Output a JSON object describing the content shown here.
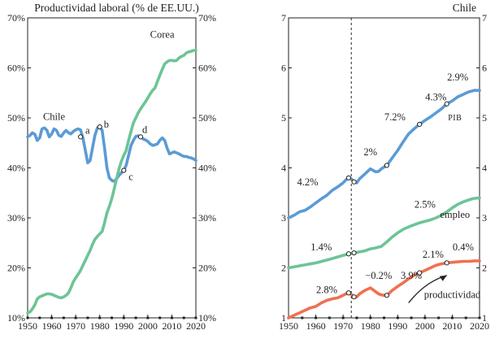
{
  "chart_data": [
    {
      "type": "line",
      "title": "Productividad laboral (% de EE.UU.)",
      "xlim": [
        1950,
        2020
      ],
      "ylim": [
        10,
        70
      ],
      "x_ticks": [
        1950,
        1960,
        1970,
        1980,
        1990,
        2000,
        2010,
        2020
      ],
      "x_tick_labels": [
        "1950",
        "1960",
        "1970",
        "1980",
        "1990",
        "2000",
        "2010",
        "2020"
      ],
      "y_ticks": [
        10,
        20,
        30,
        40,
        50,
        60,
        70
      ],
      "y_tick_labels": [
        "10%",
        "20%",
        "30%",
        "40%",
        "50%",
        "60%",
        "70%"
      ],
      "series": [
        {
          "name": "Chile",
          "label": "Chile",
          "color": "#5b9bd5",
          "x": [
            1950,
            1951,
            1952,
            1953,
            1954,
            1955,
            1956,
            1957,
            1958,
            1959,
            1960,
            1961,
            1962,
            1963,
            1964,
            1965,
            1966,
            1967,
            1968,
            1969,
            1970,
            1971,
            1972,
            1973,
            1974,
            1975,
            1976,
            1977,
            1978,
            1979,
            1980,
            1981,
            1982,
            1983,
            1984,
            1985,
            1986,
            1987,
            1988,
            1989,
            1990,
            1991,
            1992,
            1993,
            1994,
            1995,
            1996,
            1997,
            1998,
            1999,
            2000,
            2001,
            2002,
            2003,
            2004,
            2005,
            2006,
            2007,
            2008,
            2009,
            2010,
            2011,
            2012,
            2013,
            2014,
            2015,
            2016,
            2017,
            2018,
            2019,
            2020
          ],
          "values": [
            46.2,
            46.5,
            47.0,
            46.7,
            45.5,
            46.0,
            47.8,
            48.0,
            47.5,
            46.2,
            46.8,
            47.8,
            47.5,
            46.5,
            46.3,
            47.0,
            47.5,
            47.0,
            46.8,
            47.3,
            47.6,
            47.8,
            47.6,
            46.0,
            43.5,
            41.0,
            41.5,
            44.0,
            46.5,
            48.0,
            48.2,
            47.5,
            44.0,
            40.0,
            38.0,
            37.5,
            37.3,
            37.8,
            38.5,
            39.0,
            39.5,
            40.5,
            42.5,
            44.5,
            45.5,
            46.3,
            46.4,
            46.2,
            45.8,
            45.6,
            45.3,
            44.8,
            44.5,
            44.6,
            44.8,
            45.5,
            46.0,
            45.5,
            44.0,
            42.8,
            43.0,
            43.2,
            43.0,
            42.8,
            42.5,
            42.3,
            42.3,
            42.1,
            42.0,
            41.8,
            41.5
          ]
        },
        {
          "name": "Corea",
          "label": "Corea",
          "color": "#6dc496",
          "x": [
            1950,
            1951,
            1952,
            1953,
            1954,
            1955,
            1956,
            1957,
            1958,
            1959,
            1960,
            1961,
            1962,
            1963,
            1964,
            1965,
            1966,
            1967,
            1968,
            1969,
            1970,
            1971,
            1972,
            1973,
            1974,
            1975,
            1976,
            1977,
            1978,
            1979,
            1980,
            1981,
            1982,
            1983,
            1984,
            1985,
            1986,
            1987,
            1988,
            1989,
            1990,
            1991,
            1992,
            1993,
            1994,
            1995,
            1996,
            1997,
            1998,
            1999,
            2000,
            2001,
            2002,
            2003,
            2004,
            2005,
            2006,
            2007,
            2008,
            2009,
            2010,
            2011,
            2012,
            2013,
            2014,
            2015,
            2016,
            2017,
            2018,
            2019,
            2020
          ],
          "values": [
            11.0,
            11.2,
            11.8,
            12.6,
            13.8,
            14.2,
            14.4,
            14.6,
            14.8,
            14.8,
            14.7,
            14.5,
            14.3,
            14.1,
            14.0,
            14.2,
            14.5,
            15.0,
            16.0,
            17.2,
            18.0,
            18.7,
            19.5,
            20.5,
            21.5,
            22.5,
            23.5,
            24.7,
            25.7,
            26.3,
            26.8,
            27.3,
            29.0,
            31.0,
            32.3,
            33.8,
            35.8,
            37.8,
            39.8,
            41.3,
            42.5,
            43.5,
            45.5,
            47.3,
            49.0,
            50.0,
            51.0,
            51.8,
            52.5,
            53.2,
            54.0,
            54.8,
            55.5,
            56.0,
            57.3,
            58.5,
            59.7,
            60.8,
            61.2,
            61.5,
            61.5,
            61.4,
            61.5,
            62.0,
            62.3,
            62.5,
            63.0,
            63.2,
            63.3,
            63.5,
            63.5
          ]
        }
      ],
      "annotations": [
        {
          "label": "a",
          "x": 1972,
          "y": 46.2
        },
        {
          "label": "b",
          "x": 1980,
          "y": 48.2
        },
        {
          "label": "c",
          "x": 1990,
          "y": 39.5
        },
        {
          "label": "d",
          "x": 1997,
          "y": 46.2
        }
      ]
    },
    {
      "type": "line",
      "title": "Chile",
      "xlim": [
        1950,
        2020
      ],
      "ylim": [
        1,
        7
      ],
      "x_ticks": [
        1950,
        1960,
        1970,
        1980,
        1990,
        2000,
        2010,
        2020
      ],
      "x_tick_labels": [
        "1950",
        "1960",
        "1970",
        "1980",
        "1990",
        "2000",
        "2010",
        "2020"
      ],
      "y_ticks": [
        1,
        2,
        3,
        4,
        5,
        6,
        7
      ],
      "y_tick_labels": [
        "1",
        "2",
        "3",
        "4",
        "5",
        "6",
        "7"
      ],
      "vline_x": 1973,
      "series": [
        {
          "name": "PIB",
          "label": "PIB",
          "color": "#5b9bd5",
          "x": [
            1950,
            1952,
            1954,
            1956,
            1958,
            1960,
            1962,
            1964,
            1966,
            1968,
            1970,
            1971,
            1972,
            1973,
            1974,
            1975,
            1976,
            1978,
            1980,
            1982,
            1983,
            1984,
            1986,
            1988,
            1990,
            1992,
            1994,
            1996,
            1998,
            2000,
            2002,
            2004,
            2006,
            2008,
            2010,
            2012,
            2014,
            2016,
            2018,
            2020
          ],
          "values": [
            3.0,
            3.05,
            3.12,
            3.15,
            3.22,
            3.3,
            3.38,
            3.45,
            3.55,
            3.62,
            3.7,
            3.76,
            3.8,
            3.78,
            3.72,
            3.7,
            3.78,
            3.88,
            3.98,
            3.92,
            3.93,
            3.98,
            4.05,
            4.2,
            4.35,
            4.52,
            4.68,
            4.78,
            4.87,
            4.95,
            5.02,
            5.1,
            5.18,
            5.28,
            5.34,
            5.42,
            5.47,
            5.52,
            5.55,
            5.55
          ]
        },
        {
          "name": "empleo",
          "label": "empleo",
          "color": "#6dc496",
          "x": [
            1950,
            1955,
            1960,
            1965,
            1970,
            1972,
            1974,
            1976,
            1978,
            1980,
            1982,
            1984,
            1986,
            1988,
            1990,
            1992,
            1994,
            1996,
            1998,
            2000,
            2002,
            2004,
            2006,
            2008,
            2010,
            2012,
            2014,
            2016,
            2018,
            2020
          ],
          "values": [
            2.0,
            2.05,
            2.1,
            2.17,
            2.25,
            2.28,
            2.3,
            2.32,
            2.34,
            2.38,
            2.4,
            2.43,
            2.52,
            2.62,
            2.7,
            2.77,
            2.82,
            2.86,
            2.9,
            2.93,
            2.96,
            3.0,
            3.05,
            3.12,
            3.2,
            3.27,
            3.32,
            3.36,
            3.39,
            3.4
          ]
        },
        {
          "name": "productividad",
          "label": "productividad",
          "color": "#f07050",
          "x": [
            1950,
            1952,
            1954,
            1956,
            1958,
            1960,
            1962,
            1964,
            1966,
            1968,
            1970,
            1971,
            1972,
            1973,
            1974,
            1975,
            1976,
            1978,
            1980,
            1982,
            1983,
            1984,
            1985,
            1986,
            1988,
            1990,
            1992,
            1994,
            1996,
            1998,
            2000,
            2002,
            2004,
            2006,
            2008,
            2010,
            2012,
            2014,
            2016,
            2018,
            2020
          ],
          "values": [
            1.0,
            1.05,
            1.1,
            1.15,
            1.2,
            1.23,
            1.3,
            1.35,
            1.38,
            1.4,
            1.45,
            1.48,
            1.5,
            1.47,
            1.42,
            1.42,
            1.48,
            1.55,
            1.6,
            1.52,
            1.48,
            1.46,
            1.45,
            1.45,
            1.55,
            1.63,
            1.7,
            1.78,
            1.85,
            1.9,
            1.95,
            2.0,
            2.05,
            2.08,
            2.1,
            2.11,
            2.12,
            2.13,
            2.13,
            2.14,
            2.14
          ]
        }
      ],
      "annotations": [
        {
          "text": "4.2%",
          "x": 1957,
          "y": 3.65
        },
        {
          "text": "2%",
          "x": 1980,
          "y": 4.25
        },
        {
          "text": "7.2%",
          "x": 1989,
          "y": 4.95
        },
        {
          "text": "4.3%",
          "x": 2004,
          "y": 5.35
        },
        {
          "text": "2.9%",
          "x": 2012,
          "y": 5.75
        },
        {
          "text": "1.4%",
          "x": 1962,
          "y": 2.35
        },
        {
          "text": "2.5%",
          "x": 2000,
          "y": 3.2
        },
        {
          "text": "2.8%",
          "x": 1964,
          "y": 1.5
        },
        {
          "text": "−0.2%",
          "x": 1983,
          "y": 1.78
        },
        {
          "text": "3.9%",
          "x": 1995,
          "y": 1.78
        },
        {
          "text": "2.1%",
          "x": 2003,
          "y": 2.2
        },
        {
          "text": "0.4%",
          "x": 2014,
          "y": 2.35
        }
      ],
      "markers": [
        {
          "series": "PIB",
          "x": 1972,
          "y": 3.8
        },
        {
          "series": "PIB",
          "x": 1974,
          "y": 3.72
        },
        {
          "series": "PIB",
          "x": 1986,
          "y": 4.05
        },
        {
          "series": "PIB",
          "x": 1998,
          "y": 4.87
        },
        {
          "series": "PIB",
          "x": 2008,
          "y": 5.28
        },
        {
          "series": "empleo",
          "x": 1972,
          "y": 2.28
        },
        {
          "series": "empleo",
          "x": 1974,
          "y": 2.3
        },
        {
          "series": "productividad",
          "x": 1972,
          "y": 1.5
        },
        {
          "series": "productividad",
          "x": 1974,
          "y": 1.42
        },
        {
          "series": "productividad",
          "x": 1986,
          "y": 1.45
        },
        {
          "series": "productividad",
          "x": 1998,
          "y": 1.9
        },
        {
          "series": "productividad",
          "x": 2008,
          "y": 2.1
        }
      ]
    }
  ]
}
